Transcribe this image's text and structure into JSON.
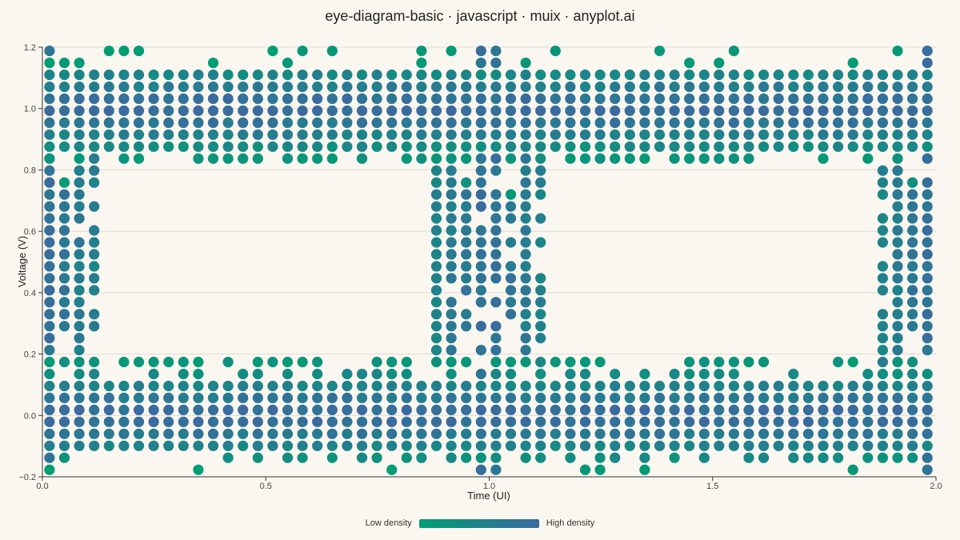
{
  "title": "eye-diagram-basic · javascript · muix · anyplot.ai",
  "legend": {
    "low_label": "Low density",
    "high_label": "High density"
  },
  "colors": {
    "low": "#009e73",
    "high": "#3b6aa0",
    "background": "#faf7f0",
    "grid": "#dedbd3"
  },
  "chart_data": {
    "type": "heatmap",
    "subtype": "eye-diagram-density",
    "xlabel": "Time (UI)",
    "ylabel": "Voltage (V)",
    "xlim": [
      0.0,
      2.0
    ],
    "ylim": [
      -0.2,
      1.2
    ],
    "x_ticks": [
      "0.0",
      "0.5",
      "1.0",
      "1.5",
      "2.0"
    ],
    "y_ticks": [
      "−0.2",
      "0.0",
      "0.2",
      "0.4",
      "0.6",
      "0.8",
      "1.0",
      "1.2"
    ],
    "x_tick_values": [
      0.0,
      0.5,
      1.0,
      1.5,
      2.0
    ],
    "y_tick_values": [
      -0.2,
      0.0,
      0.2,
      0.4,
      0.6,
      0.8,
      1.0,
      1.2
    ],
    "bin_size": {
      "time": 0.0333,
      "voltage": 0.039
    },
    "grid": true,
    "legend_position": "bottom",
    "levels": {
      "high": {
        "center": 1.0,
        "span": [
          0.84,
          1.14
        ]
      },
      "low": {
        "center": 0.0,
        "span": [
          -0.14,
          0.17
        ]
      }
    },
    "crossings": [
      0.0,
      1.0,
      2.0
    ],
    "crossing_width": 0.12
  }
}
